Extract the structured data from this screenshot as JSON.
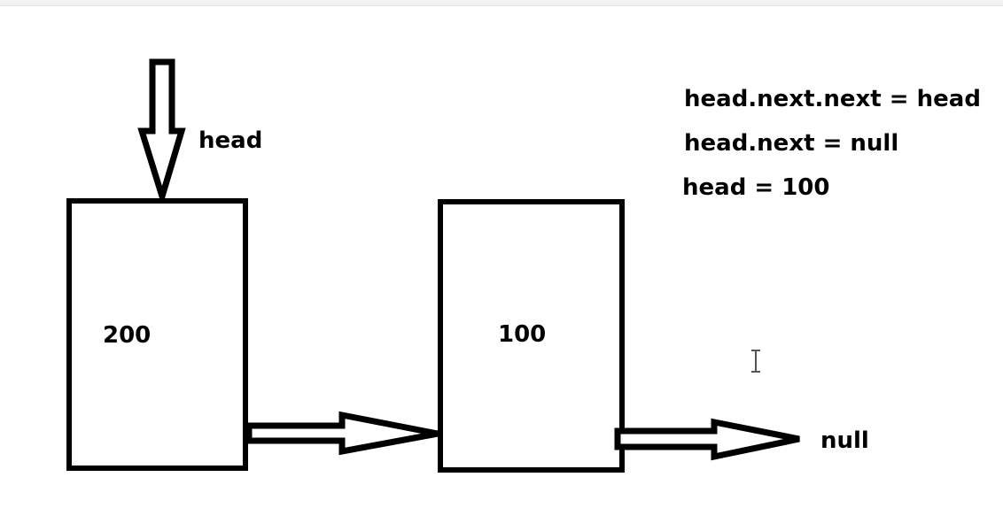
{
  "diagram": {
    "pointer_label": "head",
    "nodes": [
      {
        "value": "200"
      },
      {
        "value": "100"
      }
    ],
    "terminal_label": "null"
  },
  "notes": [
    "head.next.next = head",
    "head.next = null",
    "head = 100"
  ],
  "icons": {
    "cursor": "text-cursor-icon"
  }
}
